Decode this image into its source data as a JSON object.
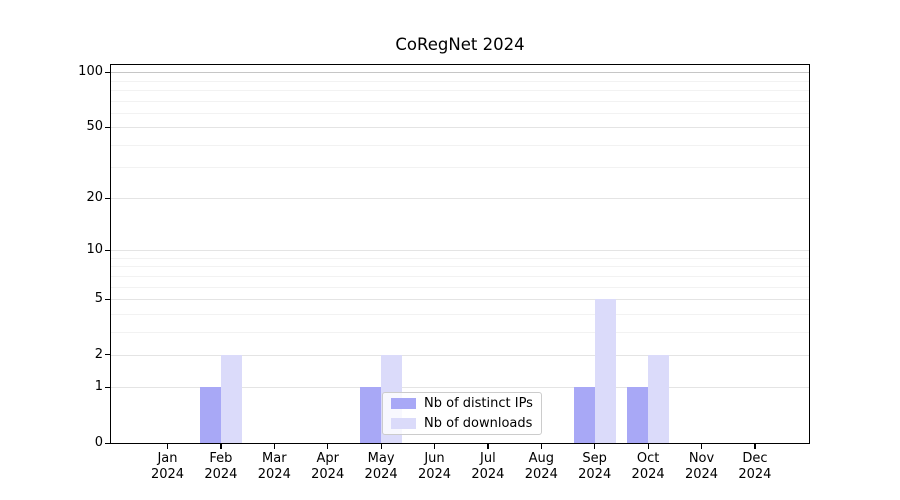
{
  "chart_data": {
    "type": "bar",
    "title": "CoRegNet 2024",
    "categories": [
      "Jan 2024",
      "Feb 2024",
      "Mar 2024",
      "Apr 2024",
      "May 2024",
      "Jun 2024",
      "Jul 2024",
      "Aug 2024",
      "Sep 2024",
      "Oct 2024",
      "Nov 2024",
      "Dec 2024"
    ],
    "series": [
      {
        "name": "Nb of distinct IPs",
        "color": "#a8a8f6",
        "values": [
          0,
          1,
          0,
          0,
          1,
          0,
          0,
          0,
          1,
          1,
          0,
          0
        ]
      },
      {
        "name": "Nb of downloads",
        "color": "#dbdbfa",
        "values": [
          0,
          2,
          0,
          0,
          2,
          0,
          0,
          0,
          5,
          2,
          0,
          0
        ]
      }
    ],
    "xlabel": "",
    "ylabel": "",
    "y_scale": "log1p",
    "ylim": [
      0,
      111
    ],
    "y_major_ticks": [
      0,
      1,
      2,
      5,
      10,
      20,
      50,
      100
    ],
    "y_minor_gridlines": [
      3,
      4,
      6,
      7,
      8,
      9,
      30,
      40,
      60,
      70,
      80,
      90
    ],
    "grid": "horizontal",
    "legend_position": "lower center"
  },
  "colors": {
    "grid_major": "#e4e4e4",
    "grid_major_top": "#c6c6c6",
    "grid_minor": "#f2f2f2",
    "spine": "#000000",
    "background": "#ffffff"
  }
}
